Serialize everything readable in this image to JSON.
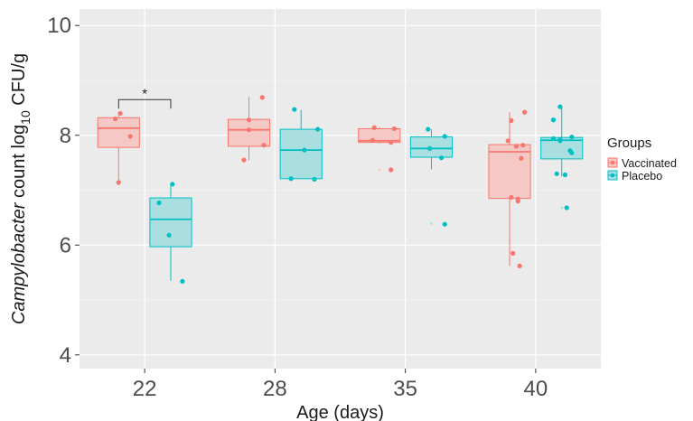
{
  "chart_data": {
    "type": "box",
    "xlabel": "Age (days)",
    "ylabel": {
      "italic": "Campylobacter",
      "plain": " count log",
      "subscript": "10",
      "unit": " CFU/g"
    },
    "ylim": [
      3.75,
      10.3
    ],
    "yticks": [
      4,
      6,
      8,
      10
    ],
    "categories": [
      "22",
      "28",
      "35",
      "40"
    ],
    "grid": true,
    "legend": {
      "title": "Groups",
      "position": "right"
    },
    "significance": [
      {
        "category": "22",
        "label": "*",
        "y": 8.65
      }
    ],
    "series": [
      {
        "name": "Vaccinated",
        "color": "#f8766d",
        "fill": "#f4c9c5",
        "boxes": [
          {
            "category": "22",
            "min": 7.15,
            "q1": 7.78,
            "median": 8.13,
            "q3": 8.32,
            "max": 8.4,
            "outliers": [],
            "points": [
              {
                "dx": 0.04,
                "y": 8.4
              },
              {
                "dx": -0.08,
                "y": 8.3
              },
              {
                "dx": 0.28,
                "y": 7.98
              },
              {
                "dx": 0.0,
                "y": 7.14
              }
            ]
          },
          {
            "category": "28",
            "min": 7.55,
            "q1": 7.8,
            "median": 8.1,
            "q3": 8.29,
            "max": 8.7,
            "outliers": [],
            "points": [
              {
                "dx": 0.32,
                "y": 8.69
              },
              {
                "dx": 0.0,
                "y": 8.28
              },
              {
                "dx": 0.0,
                "y": 8.1
              },
              {
                "dx": 0.36,
                "y": 7.82
              },
              {
                "dx": -0.12,
                "y": 7.55
              }
            ]
          },
          {
            "category": "35",
            "min": 7.85,
            "q1": 7.87,
            "median": 7.9,
            "q3": 8.12,
            "max": 8.14,
            "outliers": [
              7.37
            ],
            "points": [
              {
                "dx": -0.12,
                "y": 8.14
              },
              {
                "dx": 0.36,
                "y": 8.12
              },
              {
                "dx": -0.16,
                "y": 7.91
              },
              {
                "dx": 0.28,
                "y": 7.87
              },
              {
                "dx": 0.28,
                "y": 7.37
              }
            ]
          },
          {
            "category": "40",
            "min": 5.62,
            "q1": 6.85,
            "median": 7.7,
            "q3": 7.83,
            "max": 8.42,
            "outliers": [],
            "points": [
              {
                "dx": 0.36,
                "y": 8.42
              },
              {
                "dx": 0.04,
                "y": 8.27
              },
              {
                "dx": -0.04,
                "y": 7.9
              },
              {
                "dx": 0.32,
                "y": 7.82
              },
              {
                "dx": 0.16,
                "y": 7.8
              },
              {
                "dx": 0.28,
                "y": 7.58
              },
              {
                "dx": 0.04,
                "y": 6.87
              },
              {
                "dx": 0.2,
                "y": 6.84
              },
              {
                "dx": 0.2,
                "y": 6.8
              },
              {
                "dx": 0.08,
                "y": 5.85
              },
              {
                "dx": 0.24,
                "y": 5.62
              }
            ]
          }
        ]
      },
      {
        "name": "Placebo",
        "color": "#00bfc4",
        "fill": "#a9dfe0",
        "boxes": [
          {
            "category": "22",
            "min": 5.35,
            "q1": 5.97,
            "median": 6.47,
            "q3": 6.86,
            "max": 7.1,
            "outliers": [],
            "points": [
              {
                "dx": 0.04,
                "y": 7.11
              },
              {
                "dx": -0.28,
                "y": 6.77
              },
              {
                "dx": -0.04,
                "y": 6.18
              },
              {
                "dx": 0.28,
                "y": 5.34
              }
            ]
          },
          {
            "category": "28",
            "min": 7.2,
            "q1": 7.21,
            "median": 7.73,
            "q3": 8.11,
            "max": 8.46,
            "outliers": [],
            "points": [
              {
                "dx": -0.16,
                "y": 8.47
              },
              {
                "dx": 0.4,
                "y": 8.11
              },
              {
                "dx": 0.08,
                "y": 7.73
              },
              {
                "dx": -0.24,
                "y": 7.21
              },
              {
                "dx": 0.32,
                "y": 7.2
              }
            ]
          },
          {
            "category": "35",
            "min": 7.38,
            "q1": 7.6,
            "median": 7.76,
            "q3": 7.97,
            "max": 8.11,
            "outliers": [
              6.39
            ],
            "points": [
              {
                "dx": -0.08,
                "y": 8.11
              },
              {
                "dx": 0.32,
                "y": 7.98
              },
              {
                "dx": -0.04,
                "y": 7.76
              },
              {
                "dx": 0.24,
                "y": 7.59
              },
              {
                "dx": 0.32,
                "y": 6.38
              }
            ]
          },
          {
            "category": "40",
            "min": 7.25,
            "q1": 7.57,
            "median": 7.91,
            "q3": 7.96,
            "max": 8.52,
            "outliers": [
              6.68
            ],
            "points": [
              {
                "dx": -0.04,
                "y": 8.52
              },
              {
                "dx": -0.2,
                "y": 8.28
              },
              {
                "dx": 0.24,
                "y": 7.97
              },
              {
                "dx": -0.2,
                "y": 7.94
              },
              {
                "dx": -0.04,
                "y": 7.92
              },
              {
                "dx": -0.04,
                "y": 7.9
              },
              {
                "dx": 0.2,
                "y": 7.72
              },
              {
                "dx": 0.24,
                "y": 7.68
              },
              {
                "dx": -0.12,
                "y": 7.3
              },
              {
                "dx": 0.08,
                "y": 7.28
              },
              {
                "dx": 0.12,
                "y": 6.68
              }
            ]
          }
        ]
      }
    ]
  }
}
